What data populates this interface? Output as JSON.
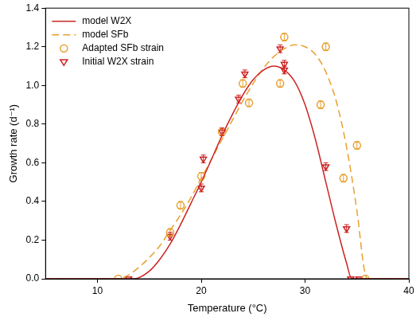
{
  "chart_data": {
    "type": "scatter",
    "x_label": "Temperature (°C)",
    "y_label": "Growth rate (d⁻¹)",
    "xlim": [
      5,
      40
    ],
    "xticks": [
      10,
      20,
      30,
      40
    ],
    "ylim": [
      0,
      1.4
    ],
    "yticks": [
      {
        "value": 0,
        "label": "0.0"
      },
      0.2,
      0.4,
      0.6,
      0.8,
      {
        "value": 1,
        "label": "1.0"
      },
      1.2,
      1.4
    ],
    "grid": false,
    "legend": "upper left",
    "series": [
      {
        "name": "model W2X",
        "type": "line",
        "color": "#cc2222",
        "line_style": "solid",
        "x": [
          5,
          13.5,
          15,
          16,
          17,
          18,
          19,
          20,
          21,
          22,
          23,
          24,
          25,
          26,
          27,
          28,
          29,
          30,
          31,
          32,
          33,
          34,
          34.5,
          40
        ],
        "values": [
          0,
          0,
          0.04,
          0.1,
          0.18,
          0.28,
          0.39,
          0.5,
          0.62,
          0.74,
          0.85,
          0.95,
          1.03,
          1.08,
          1.1,
          1.08,
          1.02,
          0.9,
          0.72,
          0.5,
          0.28,
          0.08,
          0,
          0
        ]
      },
      {
        "name": "model SFb",
        "type": "line",
        "color": "#e8a030",
        "line_style": "dashed",
        "x": [
          5,
          12,
          13,
          14,
          15,
          16,
          17,
          18,
          19,
          20,
          21,
          22,
          23,
          24,
          25,
          26,
          27,
          28,
          29,
          30,
          31,
          32,
          33,
          34,
          35,
          35.7,
          36,
          40
        ],
        "values": [
          0,
          0,
          0.02,
          0.06,
          0.11,
          0.17,
          0.25,
          0.33,
          0.42,
          0.52,
          0.62,
          0.72,
          0.82,
          0.92,
          1.01,
          1.09,
          1.15,
          1.19,
          1.21,
          1.2,
          1.16,
          1.07,
          0.92,
          0.68,
          0.35,
          0.05,
          0,
          0
        ]
      },
      {
        "name": "Adapted SFb strain",
        "type": "scatter",
        "color": "#e8a030",
        "marker": "circle",
        "x": [
          12,
          17,
          18,
          20,
          22,
          24,
          24.6,
          27.6,
          28,
          31.5,
          32,
          33.7,
          35,
          35.8
        ],
        "values": [
          0,
          0.24,
          0.38,
          0.53,
          0.76,
          1.01,
          0.91,
          1.01,
          1.25,
          0.9,
          1.2,
          0.52,
          0.69,
          0
        ],
        "errors": [
          0,
          0.02,
          0.02,
          0.02,
          0.02,
          0.02,
          0.02,
          0.02,
          0.02,
          0.02,
          0.02,
          0.02,
          0.02,
          0
        ]
      },
      {
        "name": "Initial W2X strain",
        "type": "scatter",
        "color": "#cc2222",
        "marker": "triangle_down",
        "x": [
          13,
          17,
          20,
          20.2,
          22,
          23.6,
          24.2,
          27.6,
          28,
          28,
          32,
          34,
          34.4,
          35.2
        ],
        "values": [
          0,
          0.22,
          0.47,
          0.62,
          0.76,
          0.93,
          1.06,
          1.19,
          1.08,
          1.11,
          0.58,
          0.26,
          0,
          0
        ],
        "errors": [
          0,
          0.02,
          0.02,
          0.02,
          0.02,
          0.02,
          0.02,
          0.02,
          0.02,
          0.02,
          0.02,
          0.02,
          0,
          0
        ]
      }
    ]
  }
}
